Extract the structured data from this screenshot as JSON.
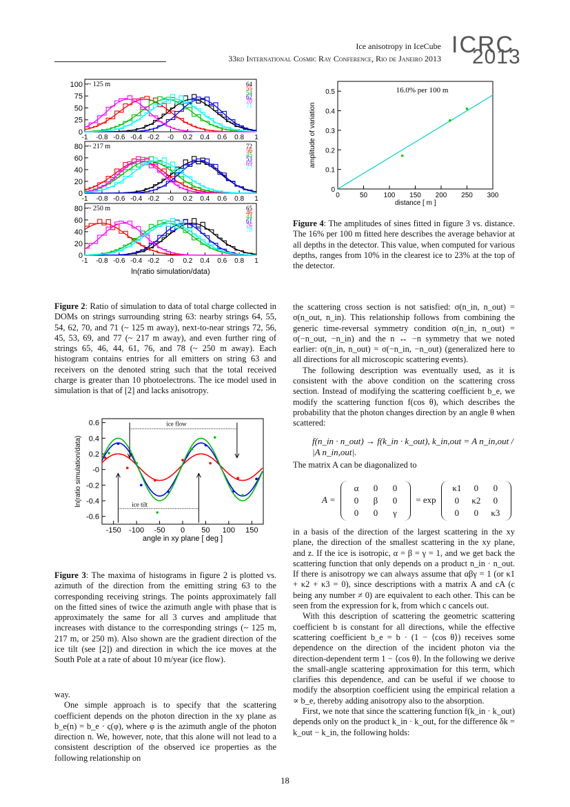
{
  "header": {
    "running_title": "Ice anisotropy in IceCube",
    "conference": "33rd International Cosmic Ray Conference, Rio de Janeiro 2013",
    "logo_top": "ICRC",
    "logo_bottom": "2013"
  },
  "figure2": {
    "xlabel": "ln(ratio simulation/data)",
    "xticks": [
      "-1",
      "-0.8",
      "-0.6",
      "-0.4",
      "-0.2",
      "-0",
      "0.2",
      "0.4",
      "0.6",
      "0.8",
      "1"
    ],
    "panels": [
      {
        "label": "~ 125 m",
        "yticks": [
          "0",
          "25",
          "50",
          "75",
          "100"
        ],
        "ymax": 110,
        "strings": [
          "64",
          "55",
          "54",
          "62",
          "70",
          "71"
        ]
      },
      {
        "label": "~ 217 m",
        "yticks": [
          "0",
          "20",
          "40",
          "60",
          "80"
        ],
        "ymax": 88,
        "strings": [
          "72",
          "56",
          "45",
          "53",
          "69",
          "77"
        ]
      },
      {
        "label": "~ 250 m",
        "yticks": [
          "0",
          "20",
          "40",
          "60",
          "80"
        ],
        "ymax": 88,
        "strings": [
          "65",
          "46",
          "44",
          "61",
          "76",
          "78"
        ]
      }
    ],
    "series_colors": [
      "#000000",
      "#ff0000",
      "#00c000",
      "#0000ff",
      "#ff00ff",
      "#00ffff"
    ],
    "caption_label": "Figure 2",
    "caption": ": Ratio of simulation to data of total charge collected in DOMs on strings surrounding string 63: nearby strings 64, 55, 54, 62, 70, and 71 (~ 125 m away), next-to-near strings 72, 56, 45, 53, 69, and 77 (~ 217 m away), and even further ring of strings 65, 46, 44, 61, 76, and 78 (~ 250 m away). Each histogram contains entries for all emitters on string 63 and receivers on the denoted string such that the total received charge is greater than 10 photoelectrons. The ice model used in simulation is that of [2] and lacks anisotropy."
  },
  "figure3": {
    "xlabel": "angle in xy plane [ deg ]",
    "ylabel": "ln(ratio simulation/data)",
    "xticks": [
      "-150",
      "-100",
      "-50",
      "0",
      "50",
      "100",
      "150"
    ],
    "yticks": [
      "-0.6",
      "-0.4",
      "-0.2",
      "-0",
      "0.2",
      "0.4",
      "0.6"
    ],
    "annot_flow": "ice flow",
    "annot_tilt": "ice tilt",
    "caption_label": "Figure 3",
    "caption": ": The maxima of histograms in figure 2 is plotted vs. azimuth of the direction from the emitting string 63 to the corresponding receiving strings. The points approximately fall on the fitted sines of twice the azimuth angle with phase that is approximately the same for all 3 curves and amplitude that increases with distance to the corresponding strings (~ 125 m, 217 m, or 250 m). Also shown are the gradient direction of the ice tilt (see [2]) and direction in which the ice moves at the South Pole at a rate of about 10 m/year (ice flow)."
  },
  "chart_data": [
    {
      "type": "line",
      "title": "",
      "xlabel": "angle in xy plane [ deg ]",
      "ylabel": "ln(ratio simulation/data)",
      "xlim": [
        -175,
        175
      ],
      "ylim": [
        -0.7,
        0.65
      ],
      "series": [
        {
          "color": "#ff0000",
          "fit": {
            "amplitude": 0.17,
            "phase_deg": 40,
            "offset": 0.03
          },
          "x": [
            -168,
            -120,
            -60,
            0,
            60,
            120,
            165
          ],
          "y": [
            0.15,
            0.02,
            -0.14,
            0.12,
            0.08,
            -0.11,
            -0.12
          ]
        },
        {
          "color": "#0000ff",
          "fit": {
            "amplitude": 0.34,
            "phase_deg": 40,
            "offset": 0.0
          },
          "x": [
            -140,
            -90,
            -30,
            10,
            50,
            110,
            160
          ],
          "y": [
            0.33,
            -0.2,
            -0.29,
            0.18,
            0.31,
            -0.28,
            -0.12
          ]
        },
        {
          "color": "#00c000",
          "fit": {
            "amplitude": 0.4,
            "phase_deg": 40,
            "offset": 0.0
          },
          "x": [
            -160,
            -100,
            -55,
            20,
            70,
            130
          ],
          "y": [
            0.21,
            0.08,
            -0.55,
            0.26,
            0.41,
            -0.33
          ]
        }
      ]
    },
    {
      "type": "line",
      "title": "16.0% per 100 m",
      "xlabel": "distance [ m ]",
      "ylabel": "amplitude of variation",
      "xlim": [
        0,
        300
      ],
      "ylim": [
        0,
        0.55
      ],
      "xticks": [
        "0",
        "50",
        "100",
        "150",
        "200",
        "250",
        "300"
      ],
      "yticks": [
        "0",
        "0.1",
        "0.2",
        "0.3",
        "0.4",
        "0.5"
      ],
      "series": [
        {
          "name": "fit",
          "color": "#00cccc",
          "x": [
            0,
            300
          ],
          "y": [
            0,
            0.48
          ]
        },
        {
          "name": "points",
          "color": "#00cc00",
          "x": [
            125,
            217,
            250
          ],
          "y": [
            0.17,
            0.35,
            0.41
          ]
        }
      ]
    }
  ],
  "figure4": {
    "caption_label": "Figure 4",
    "caption": ": The amplitudes of sines fitted in figure 3 vs. distance. The 16% per 100 m fitted here describes the average behavior at all depths in the detector. This value, when computed for various depths, ranges from 10% in the clearest ice to 23% at the top of the detector."
  },
  "left_col_end": {
    "para1": "way.",
    "para2": "One simple approach is to specify that the scattering coefficient depends on the photon direction in the xy plane as b_e(n) = b_e · ς(φ), where φ is the azimuth angle of the photon direction n. We, however, note, that this alone will not lead to a consistent description of the observed ice properties as the following relationship on"
  },
  "right_col": {
    "p1": "the scattering cross section is not satisfied: σ(n_in, n_out) = σ(n_out, n_in). This relationship follows from combining the generic time-reversal symmetry condition σ(n_in, n_out) = σ(−n_out, −n_in) and the n ↔ −n symmetry that we noted earlier: σ(n_in, n_out) = σ(−n_in, −n_out) (generalized here to all directions for all microscopic scattering events).",
    "p2": "The following description was eventually used, as it is consistent with the above condition on the scattering cross section. Instead of modifying the scattering coefficient b_e, we modify the scattering function f(cos θ), which describes the probability that the photon changes direction by an angle θ when scattered:",
    "eq1": "f(n_in · n_out) → f(k_in · k_out),    k_in,out = A n_in,out / |A n_in,out|.",
    "p3": "The matrix A can be diagonalized to",
    "eq2_prefix": "A =",
    "eq2_mid": "= exp",
    "matrix1": [
      [
        "α",
        "0",
        "0"
      ],
      [
        "0",
        "β",
        "0"
      ],
      [
        "0",
        "0",
        "γ"
      ]
    ],
    "matrix2": [
      [
        "κ1",
        "0",
        "0"
      ],
      [
        "0",
        "κ2",
        "0"
      ],
      [
        "0",
        "0",
        "κ3"
      ]
    ],
    "p4": "in a basis of the direction of the largest scattering in the xy plane, the direction of the smallest scattering in the xy plane, and z. If the ice is isotropic, α = β = γ = 1, and we get back the scattering function that only depends on a product n_in · n_out. If there is anisotropy we can always assume that αβγ = 1 (or κ1 + κ2 + κ3 = 0), since descriptions with a matrix A and cA (c being any number ≠ 0) are equivalent to each other. This can be seen from the expression for k, from which c cancels out.",
    "p5": "With this description of scattering the geometric scattering coefficient b is constant for all directions, while the effective scattering coefficient b_e = b · (1 − ⟨cos θ⟩) receives some dependence on the direction of the incident photon via the direction-dependent term 1 − ⟨cos θ⟩. In the following we derive the small-angle scattering approximation for this term, which clarifies this dependence, and can be useful if we choose to modify the absorption coefficient using the empirical relation a ∝ b_e, thereby adding anisotropy also to the absorption.",
    "p6": "First, we note that since the scattering function f(k_in · k_out) depends only on the product k_in · k_out, for the difference δk = k_out − k_in, the following holds:"
  },
  "page_number": "18"
}
